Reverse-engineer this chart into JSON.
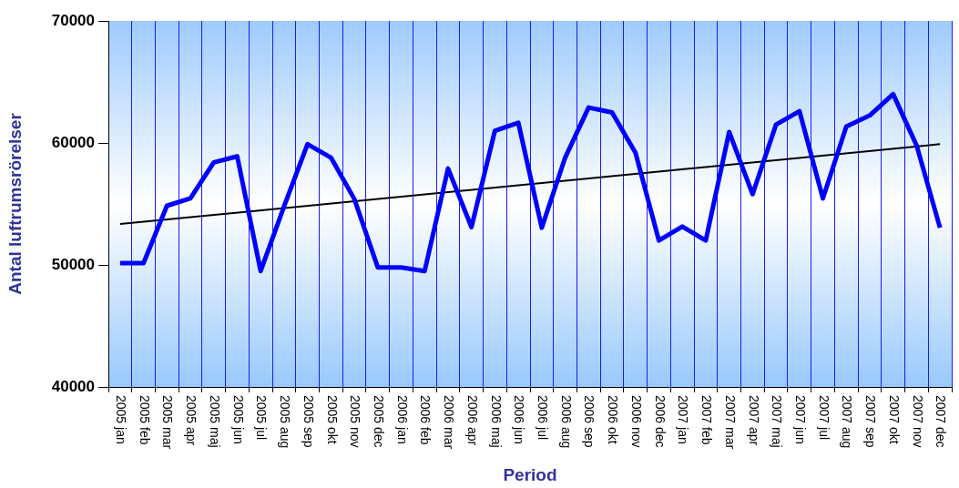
{
  "chart_data": {
    "type": "line",
    "xlabel": "Period",
    "ylabel": "Antal luftrumsrörelser",
    "categories": [
      "2005 jan",
      "2005 feb",
      "2005 mar",
      "2005 apr",
      "2005 maj",
      "2005 jun",
      "2005 jul",
      "2005 aug",
      "2005 sep",
      "2005 okt",
      "2005 nov",
      "2005 dec",
      "2006 jan",
      "2006 feb",
      "2006 mar",
      "2006 apr",
      "2006 maj",
      "2006 jun",
      "2006 jul",
      "2006 aug",
      "2006 sep",
      "2006 okt",
      "2006 nov",
      "2006 dec",
      "2007 jan",
      "2007 feb",
      "2007 mar",
      "2007 apr",
      "2007 maj",
      "2007 jun",
      "2007 jul",
      "2007 aug",
      "2007 sep",
      "2007 okt",
      "2007 nov",
      "2007 dec"
    ],
    "series": [
      {
        "color": "#0000ff",
        "values": [
          50150,
          50150,
          54850,
          55450,
          58400,
          58900,
          49500,
          54800,
          59900,
          58800,
          55400,
          49800,
          49800,
          49500,
          57900,
          53100,
          61000,
          61650,
          53050,
          58800,
          62900,
          62500,
          59200,
          52000,
          53150,
          52000,
          60900,
          55800,
          61500,
          62600,
          55450,
          61350,
          62250,
          64000,
          59800,
          53050
        ]
      },
      {
        "type": "line",
        "color": "#000000",
        "x": [
          "2005 jan",
          "2007 dec"
        ],
        "values": [
          53350,
          59900
        ]
      }
    ],
    "ylim": [
      40000,
      70000
    ],
    "yticks": [
      40000,
      50000,
      60000,
      70000
    ],
    "grid": "x",
    "legend": false,
    "marker": "none",
    "line_style": "solid"
  }
}
